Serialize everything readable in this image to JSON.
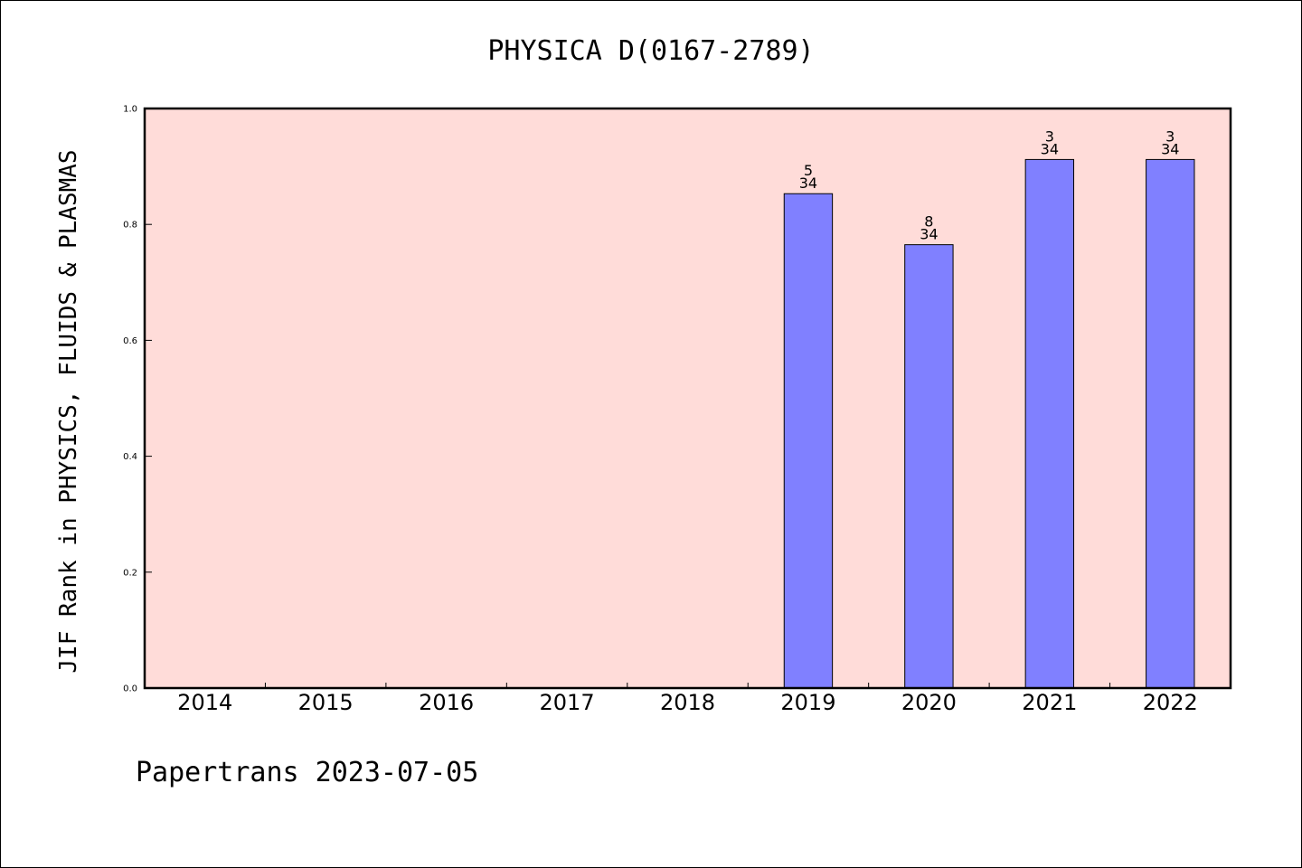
{
  "chart_data": {
    "type": "bar",
    "title": "PHYSICA D(0167-2789)",
    "ylabel": "JIF Rank in PHYSICS, FLUIDS & PLASMAS",
    "xlabel": "",
    "categories": [
      "2014",
      "2015",
      "2016",
      "2017",
      "2018",
      "2019",
      "2020",
      "2021",
      "2022"
    ],
    "values": [
      null,
      null,
      null,
      null,
      null,
      0.853,
      0.765,
      0.912,
      0.912
    ],
    "ranks": [
      null,
      null,
      null,
      null,
      null,
      "5",
      "8",
      "3",
      "3"
    ],
    "totals": [
      null,
      null,
      null,
      null,
      null,
      "34",
      "34",
      "34",
      "34"
    ],
    "ylim": [
      0,
      1.0
    ],
    "yticks": [
      "0.0",
      "0.2",
      "0.4",
      "0.6",
      "0.8",
      "1.0"
    ],
    "grid": false,
    "legend": "none",
    "colors": {
      "bar": "#8080ff",
      "plot_background": "#ffdcd9"
    }
  },
  "footer": "Papertrans 2023-07-05"
}
